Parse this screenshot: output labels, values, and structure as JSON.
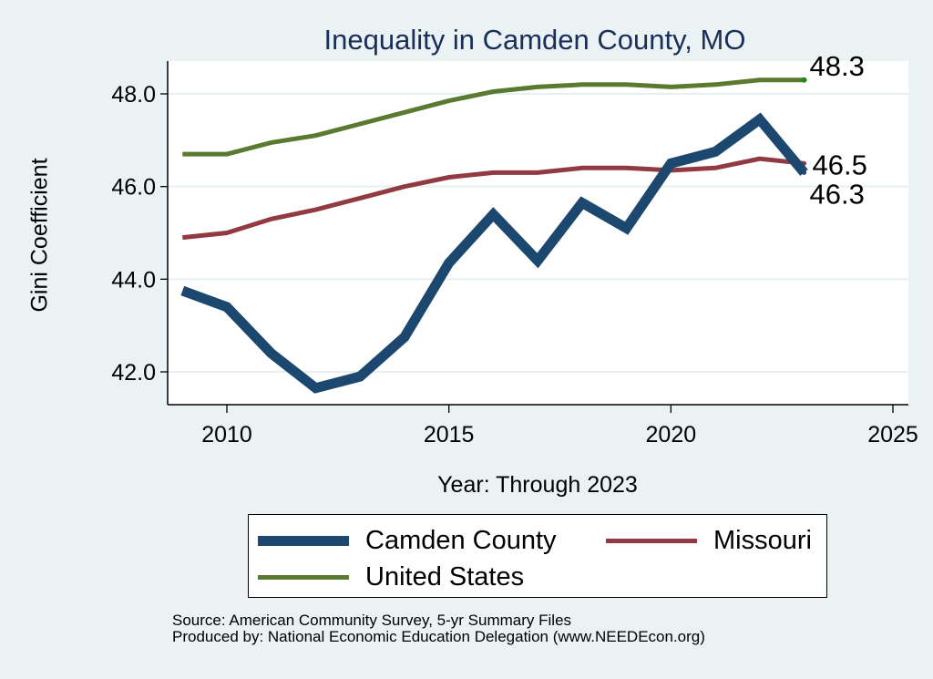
{
  "chart_data": {
    "type": "line",
    "title": "Inequality in Camden County, MO",
    "xlabel": "Year: Through 2023",
    "ylabel": "Gini Coefficient",
    "xlim": [
      2008.6,
      2025.3
    ],
    "ylim": [
      41.3,
      48.7
    ],
    "xticks": [
      2010,
      2015,
      2020,
      2025
    ],
    "xtick_labels": [
      "2010",
      "2015",
      "2020",
      "2025"
    ],
    "yticks": [
      42.0,
      44.0,
      46.0,
      48.0
    ],
    "ytick_labels": [
      "42.0",
      "44.0",
      "46.0",
      "48.0"
    ],
    "grid": true,
    "legend_position": "bottom",
    "x": [
      2009,
      2010,
      2011,
      2012,
      2013,
      2014,
      2015,
      2016,
      2017,
      2018,
      2019,
      2020,
      2021,
      2022,
      2023
    ],
    "series": [
      {
        "name": "Camden County",
        "color": "#1c4870",
        "values": [
          43.75,
          43.4,
          42.4,
          41.65,
          41.9,
          42.75,
          44.35,
          45.4,
          44.4,
          45.65,
          45.1,
          46.5,
          46.75,
          47.45,
          46.3
        ],
        "end_label": "46.3"
      },
      {
        "name": "Missouri",
        "color": "#913a42",
        "values": [
          44.9,
          45.0,
          45.3,
          45.5,
          45.75,
          46.0,
          46.2,
          46.3,
          46.3,
          46.4,
          46.4,
          46.35,
          46.4,
          46.6,
          46.5
        ],
        "end_label": "46.5"
      },
      {
        "name": "United States",
        "color": "#5a7a30",
        "values": [
          46.7,
          46.7,
          46.95,
          47.1,
          47.35,
          47.6,
          47.85,
          48.05,
          48.15,
          48.2,
          48.2,
          48.15,
          48.2,
          48.3,
          48.3
        ],
        "end_label": "48.3"
      }
    ],
    "source_lines": [
      "Source: American Community Survey, 5-yr Summary Files",
      "Produced by: National Economic Education Delegation (www.NEEDEcon.org)"
    ]
  }
}
